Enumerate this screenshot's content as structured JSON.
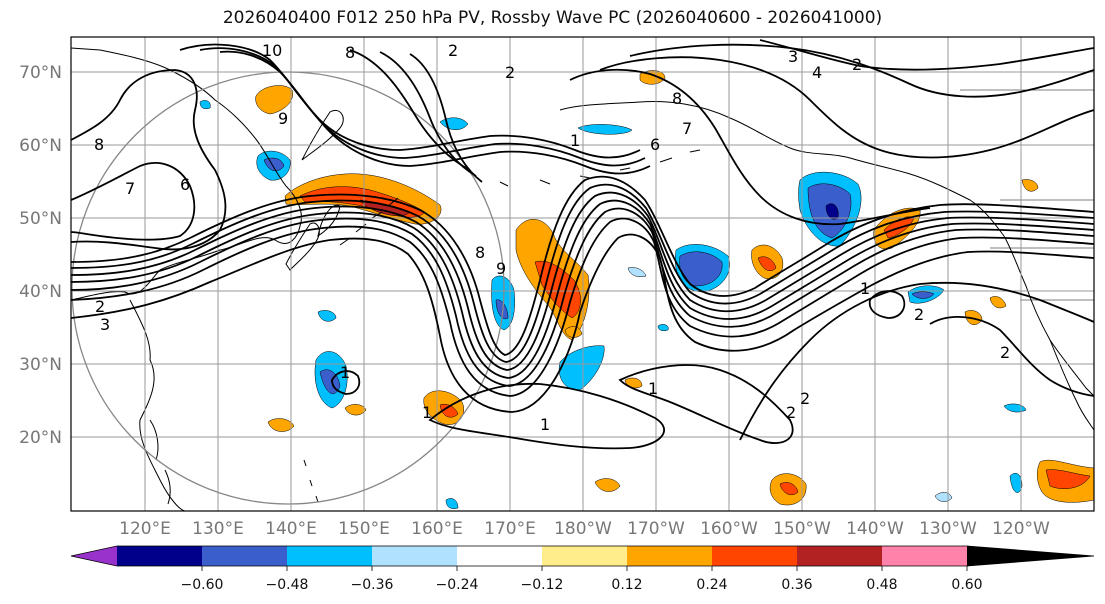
{
  "title": "2026040400 F012 250 hPa PV, Rossby Wave PC (2026040600 - 2026041000)",
  "lat_labels": [
    "70°N",
    "60°N",
    "50°N",
    "40°N",
    "30°N",
    "20°N"
  ],
  "lon_labels": [
    "120°E",
    "130°E",
    "140°E",
    "150°E",
    "160°E",
    "170°E",
    "180°W",
    "170°W",
    "160°W",
    "150°W",
    "140°W",
    "130°W",
    "120°W"
  ],
  "colorbar": {
    "colors": [
      "#9932CC",
      "#00008B",
      "#3A5FCD",
      "#00BFFF",
      "#B0E2FF",
      "#FFFFFF",
      "#FFEC8B",
      "#FFA500",
      "#FF4500",
      "#B22222",
      "#FF82AB"
    ],
    "tick_labels": [
      "−0.60",
      "−0.48",
      "−0.36",
      "−0.24",
      "−0.12",
      "0.12",
      "0.24",
      "0.36",
      "0.48",
      "0.60"
    ]
  },
  "contour_labels": [
    "10",
    "8",
    "2",
    "3",
    "4",
    "2",
    "9",
    "8",
    "6",
    "7",
    "6",
    "8",
    "7",
    "1",
    "8",
    "9",
    "2",
    "3",
    "1",
    "1",
    "1",
    "1",
    "2",
    "2",
    "2",
    "2",
    "1",
    "2"
  ]
}
